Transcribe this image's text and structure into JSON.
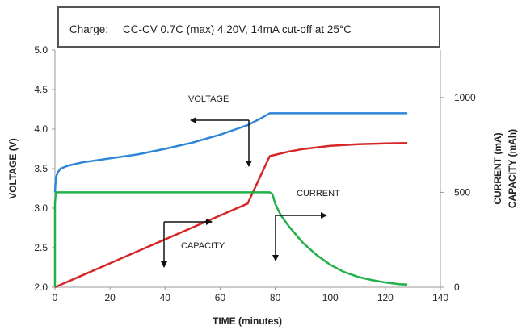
{
  "chart_data": {
    "type": "line",
    "charge_note": {
      "label": "Charge:",
      "text": "CC-CV 0.7C (max) 4.20V, 14mA cut-off at 25°C"
    },
    "xlabel": "TIME (minutes)",
    "ylabel_left": "VOLTAGE (V)",
    "ylabel_right": [
      "CURRENT (mA)",
      "CAPACITY (mAh)"
    ],
    "xlim": [
      0,
      140
    ],
    "ylim_left": [
      2.0,
      5.0
    ],
    "ylim_right": [
      0,
      1250
    ],
    "x_ticks": [
      "0",
      "20",
      "40",
      "60",
      "80",
      "100",
      "120",
      "140"
    ],
    "y_ticks_left": [
      "2.0",
      "2.5",
      "3.0",
      "3.5",
      "4.0",
      "4.5",
      "5.0"
    ],
    "y_ticks_right": [
      "0",
      "500",
      "1000"
    ],
    "grid": false,
    "series": [
      {
        "name": "VOLTAGE",
        "axis": "left",
        "color": "#2e86d6",
        "x": [
          0,
          0.3,
          1,
          2,
          5,
          10,
          20,
          30,
          40,
          50,
          60,
          65,
          70,
          75,
          78,
          80,
          90,
          100,
          110,
          120,
          128
        ],
        "y": [
          3.2,
          3.38,
          3.45,
          3.5,
          3.54,
          3.58,
          3.63,
          3.68,
          3.75,
          3.83,
          3.93,
          3.99,
          4.05,
          4.14,
          4.2,
          4.2,
          4.2,
          4.2,
          4.2,
          4.2,
          4.2
        ]
      },
      {
        "name": "CAPACITY",
        "axis": "right",
        "color": "#d62728",
        "x": [
          0,
          10,
          20,
          30,
          40,
          50,
          60,
          70,
          78,
          85,
          90,
          100,
          110,
          120,
          128
        ],
        "y": [
          0,
          63,
          126,
          189,
          252,
          315,
          378,
          441,
          691,
          715,
          728,
          745,
          754,
          758,
          760
        ],
        "y_note": "capacity values in mAh"
      },
      {
        "name": "CURRENT",
        "axis": "right",
        "color": "#22b04a",
        "x": [
          0,
          0,
          0.3,
          78,
          79,
          80,
          82,
          85,
          90,
          95,
          100,
          105,
          110,
          115,
          120,
          125,
          128
        ],
        "y": [
          0,
          440,
          500,
          500,
          490,
          440,
          380,
          320,
          235,
          170,
          118,
          80,
          55,
          38,
          25,
          16,
          14
        ]
      }
    ],
    "annotations": [
      {
        "text": "VOLTAGE"
      },
      {
        "text": "CURRENT"
      },
      {
        "text": "CAPACITY"
      }
    ]
  }
}
